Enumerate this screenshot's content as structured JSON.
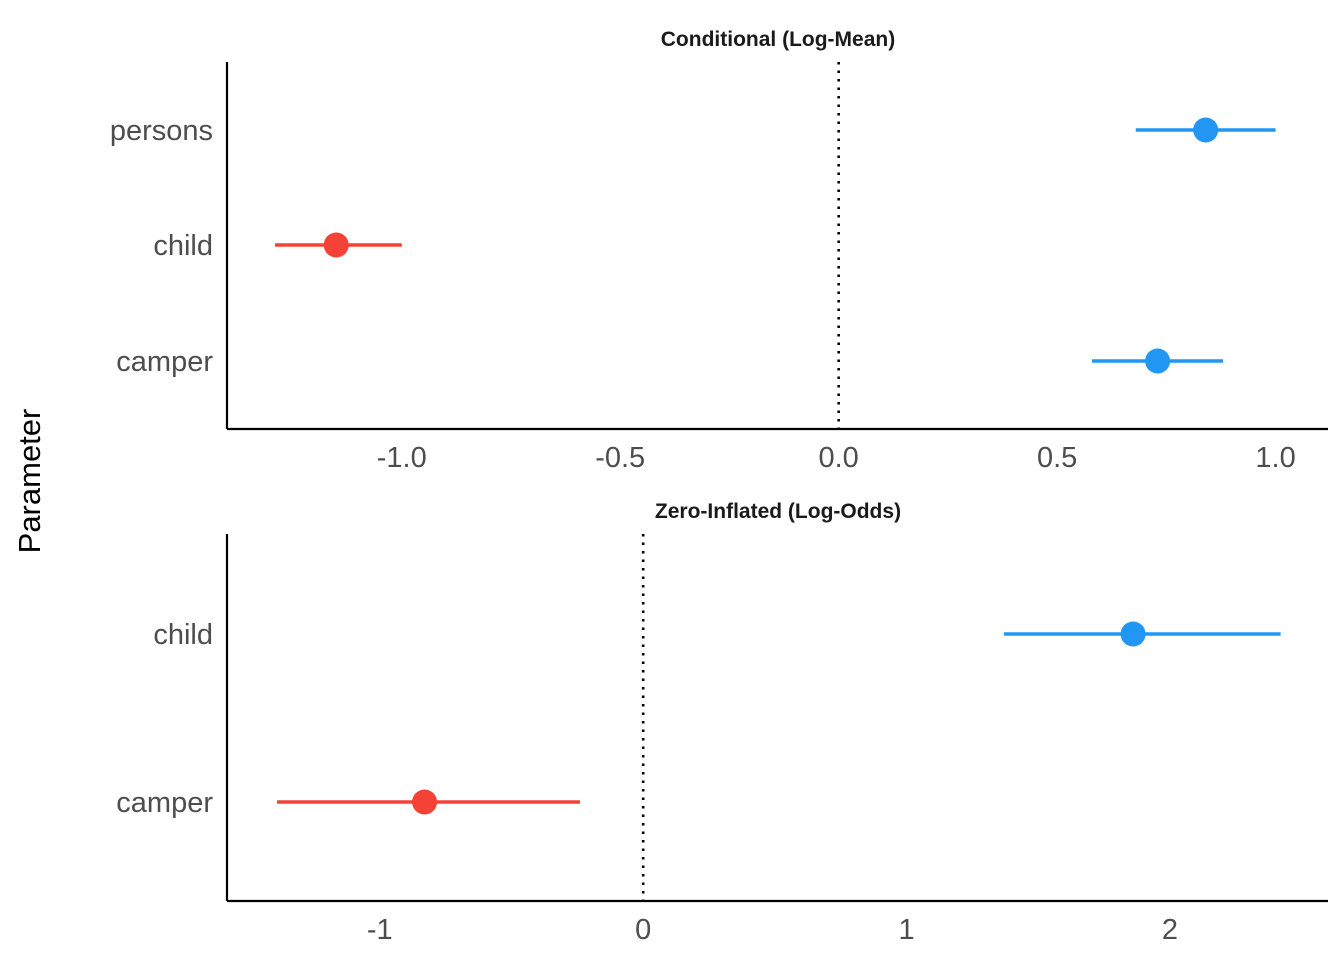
{
  "chart_data": {
    "type": "scatter",
    "ylabel": "Parameter",
    "colors": {
      "positive": "#2196F3",
      "negative": "#F44336"
    },
    "reference_line": 0,
    "panels": [
      {
        "title": "Conditional (Log-Mean)",
        "xlim": [
          -1.4,
          1.12
        ],
        "xticks": [
          -1.0,
          -0.5,
          0.0,
          0.5,
          1.0
        ],
        "xtick_labels": [
          "-1.0",
          "-0.5",
          "0.0",
          "0.5",
          "1.0"
        ],
        "categories": [
          "persons",
          "child",
          "camper"
        ],
        "estimates": [
          {
            "name": "persons",
            "value": 0.84,
            "ci_low": 0.68,
            "ci_high": 1.0,
            "sign": "positive"
          },
          {
            "name": "child",
            "value": -1.15,
            "ci_low": -1.29,
            "ci_high": -1.0,
            "sign": "negative"
          },
          {
            "name": "camper",
            "value": 0.73,
            "ci_low": 0.58,
            "ci_high": 0.88,
            "sign": "positive"
          }
        ]
      },
      {
        "title": "Zero-Inflated (Log-Odds)",
        "xlim": [
          -1.58,
          2.6
        ],
        "xticks": [
          -1,
          0,
          1,
          2
        ],
        "xtick_labels": [
          "-1",
          "0",
          "1",
          "2"
        ],
        "categories": [
          "child",
          "camper"
        ],
        "estimates": [
          {
            "name": "child",
            "value": 1.86,
            "ci_low": 1.37,
            "ci_high": 2.42,
            "sign": "positive"
          },
          {
            "name": "camper",
            "value": -0.83,
            "ci_low": -1.39,
            "ci_high": -0.24,
            "sign": "negative"
          }
        ]
      }
    ]
  }
}
